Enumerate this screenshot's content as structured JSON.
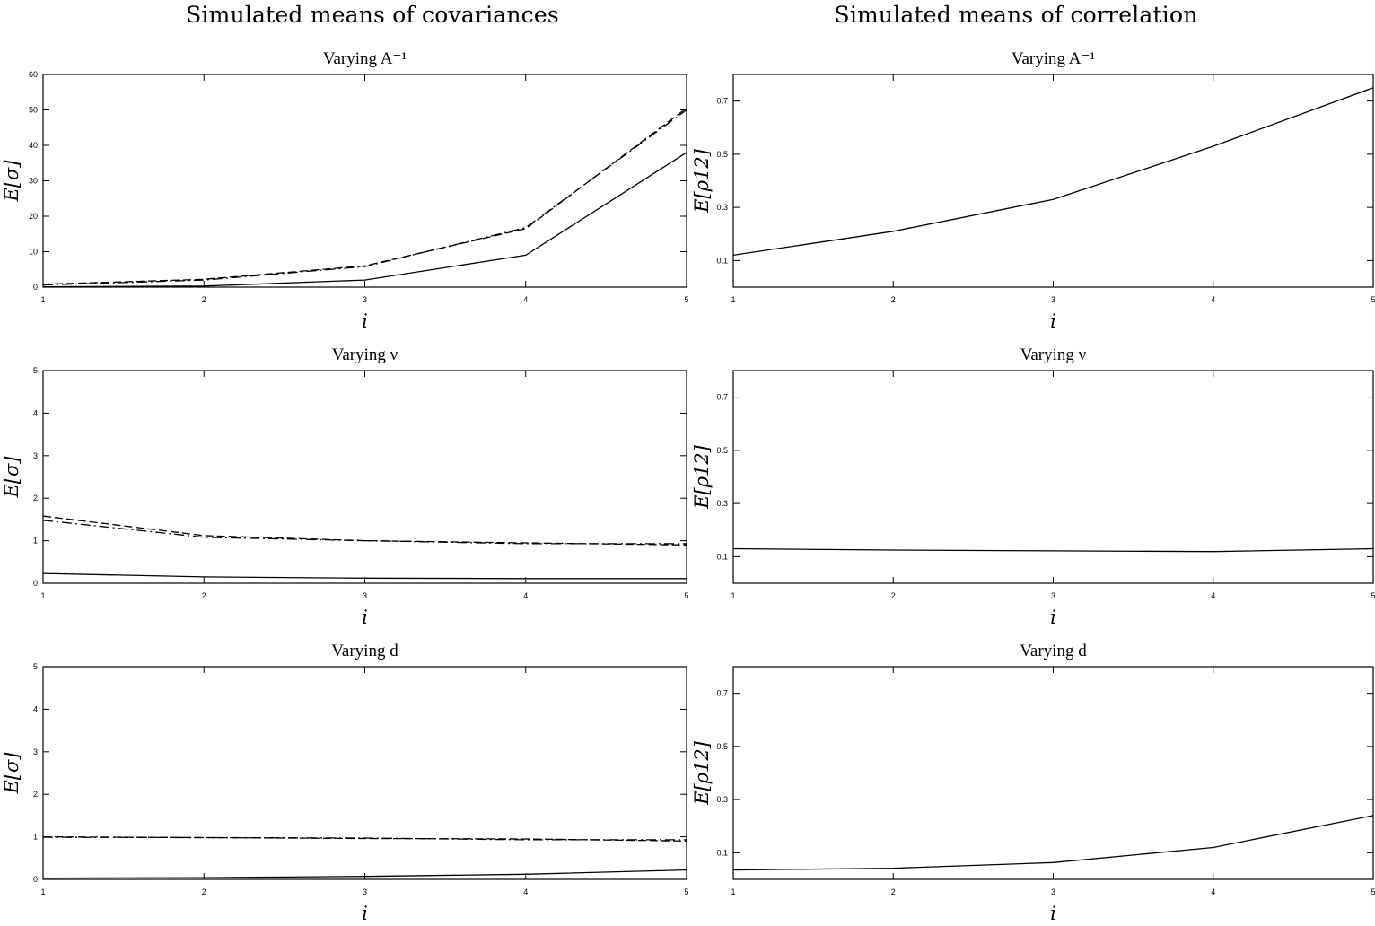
{
  "titles": {
    "left": "Simulated means of covariances",
    "right": "Simulated means of correlation"
  },
  "chart_data": [
    {
      "type": "line",
      "title": "Varying A⁻¹",
      "xlabel": "i",
      "ylabel": "E[σ]",
      "x": [
        1,
        2,
        3,
        4,
        5
      ],
      "xlim": [
        1,
        5
      ],
      "ylim": [
        0,
        60
      ],
      "yticks": [
        0,
        10,
        20,
        30,
        40,
        50,
        60
      ],
      "grid": false,
      "series": [
        {
          "style": "solid",
          "values": [
            0.1,
            0.3,
            2.0,
            9.0,
            38.0
          ]
        },
        {
          "style": "dashed",
          "values": [
            0.8,
            2.2,
            6.0,
            16.5,
            50.5
          ]
        },
        {
          "style": "dashdot",
          "values": [
            0.6,
            2.0,
            5.8,
            16.8,
            50.0
          ]
        }
      ]
    },
    {
      "type": "line",
      "title": "Varying A⁻¹",
      "xlabel": "i",
      "ylabel": "E[ρ12]",
      "x": [
        1,
        2,
        3,
        4,
        5
      ],
      "xlim": [
        1,
        5
      ],
      "ylim": [
        0,
        0.8
      ],
      "yticks": [
        0.1,
        0.3,
        0.5,
        0.7
      ],
      "grid": false,
      "series": [
        {
          "style": "solid",
          "values": [
            0.12,
            0.21,
            0.33,
            0.53,
            0.75
          ]
        }
      ]
    },
    {
      "type": "line",
      "title": "Varying ν",
      "xlabel": "i",
      "ylabel": "E[σ]",
      "x": [
        1,
        2,
        3,
        4,
        5
      ],
      "xlim": [
        1,
        5
      ],
      "ylim": [
        0,
        5
      ],
      "yticks": [
        0,
        1,
        2,
        3,
        4,
        5
      ],
      "grid": false,
      "series": [
        {
          "style": "solid",
          "values": [
            0.23,
            0.15,
            0.12,
            0.11,
            0.11
          ]
        },
        {
          "style": "dashed",
          "values": [
            1.58,
            1.12,
            1.0,
            0.95,
            0.9
          ]
        },
        {
          "style": "dashdot",
          "values": [
            1.48,
            1.08,
            1.0,
            0.93,
            0.93
          ]
        }
      ]
    },
    {
      "type": "line",
      "title": "Varying ν",
      "xlabel": "i",
      "ylabel": "E[ρ12]",
      "x": [
        1,
        2,
        3,
        4,
        5
      ],
      "xlim": [
        1,
        5
      ],
      "ylim": [
        0,
        0.8
      ],
      "yticks": [
        0.1,
        0.3,
        0.5,
        0.7
      ],
      "grid": false,
      "series": [
        {
          "style": "solid",
          "values": [
            0.13,
            0.125,
            0.122,
            0.119,
            0.13
          ]
        }
      ]
    },
    {
      "type": "line",
      "title": "Varying d",
      "xlabel": "i",
      "ylabel": "E[σ]",
      "x": [
        1,
        2,
        3,
        4,
        5
      ],
      "xlim": [
        1,
        5
      ],
      "ylim": [
        0,
        5
      ],
      "yticks": [
        0,
        1,
        2,
        3,
        4,
        5
      ],
      "grid": false,
      "series": [
        {
          "style": "solid",
          "values": [
            0.03,
            0.04,
            0.07,
            0.12,
            0.22
          ]
        },
        {
          "style": "dashed",
          "values": [
            1.0,
            0.98,
            0.96,
            0.95,
            0.9
          ]
        },
        {
          "style": "dashdot",
          "values": [
            0.99,
            0.98,
            0.97,
            0.93,
            0.93
          ]
        }
      ]
    },
    {
      "type": "line",
      "title": "Varying d",
      "xlabel": "i",
      "ylabel": "E[ρ12]",
      "x": [
        1,
        2,
        3,
        4,
        5
      ],
      "xlim": [
        1,
        5
      ],
      "ylim": [
        0,
        0.8
      ],
      "yticks": [
        0.1,
        0.3,
        0.5,
        0.7
      ],
      "grid": false,
      "series": [
        {
          "style": "solid",
          "values": [
            0.035,
            0.042,
            0.063,
            0.12,
            0.24
          ]
        }
      ]
    }
  ]
}
